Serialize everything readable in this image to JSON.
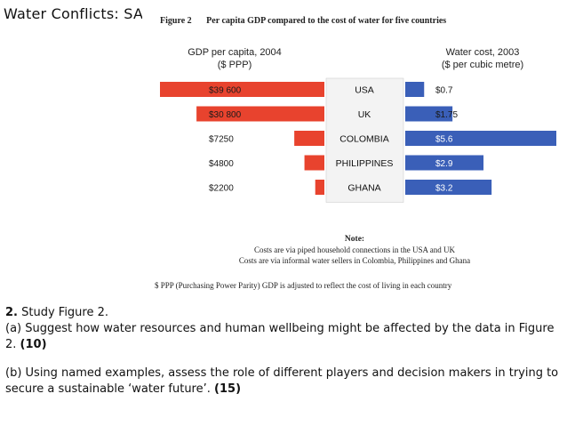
{
  "slide": {
    "title": "Water Conflicts: SA"
  },
  "figure": {
    "number": "Figure 2",
    "caption": "Per capita GDP compared to the cost of water for five countries",
    "left_axis_title": "GDP per capita, 2004",
    "left_axis_unit": "($ PPP)",
    "right_axis_title": "Water cost, 2003",
    "right_axis_unit": "($ per cubic metre)",
    "note_title": "Note:",
    "note_line1": "Costs are via piped household connections in the USA and UK",
    "note_line2": "Costs are via informal water sellers in Colombia, Philippines and Ghana",
    "ppp_note": "$ PPP (Purchasing Power Parity) GDP is adjusted to reflect the cost of living in each country"
  },
  "chart_data": {
    "type": "bar",
    "title": "Per capita GDP compared to the cost of water for five countries",
    "categories": [
      "USA",
      "UK",
      "COLOMBIA",
      "PHILIPPINES",
      "GHANA"
    ],
    "series": [
      {
        "name": "GDP per capita, 2004 ($ PPP)",
        "values": [
          39600,
          30800,
          7250,
          4800,
          2200
        ],
        "labels": [
          "$39 600",
          "$30 800",
          "$7250",
          "$4800",
          "$2200"
        ],
        "color": "#e8432e",
        "direction": "left"
      },
      {
        "name": "Water cost, 2003 ($ per cubic metre)",
        "values": [
          0.7,
          1.75,
          5.6,
          2.9,
          3.2
        ],
        "labels": [
          "$0.7",
          "$1.75",
          "$5.6",
          "$2.9",
          "$3.2"
        ],
        "color": "#3a5fb8",
        "direction": "right"
      }
    ],
    "xlabel": "",
    "ylabel": ""
  },
  "questions": {
    "q_number": "2.",
    "q_intro": "Study Figure 2.",
    "part_a": "(a) Suggest how water resources and human wellbeing might be affected by the data in Figure 2.",
    "part_a_marks": "(10)",
    "part_b": "(b) Using named examples, assess the role of different players and decision makers in trying to secure a sustainable ‘water future’.",
    "part_b_marks": "(15)"
  }
}
